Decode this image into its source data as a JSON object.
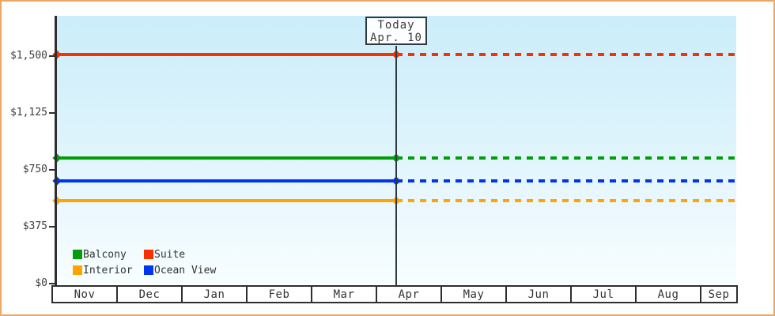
{
  "chart": {
    "name": "cabin-price-history-and-forecast-chart"
  },
  "colors": {
    "frame_border": "#eca767",
    "plot_bg_top": "#cbedfa",
    "plot_bg_bottom": "#f7feff",
    "axis_ink": "#2e2e2e",
    "text_ink": "#3a3a3a",
    "today_box_bg": "#fdfeff"
  },
  "chart_data": {
    "type": "line",
    "title": "",
    "x": {
      "categories": [
        "Nov",
        "Dec",
        "Jan",
        "Feb",
        "Mar",
        "Apr",
        "May",
        "Jun",
        "Jul",
        "Aug",
        "Sep"
      ]
    },
    "y": {
      "range": [
        0,
        1500
      ],
      "ticks": [
        1500,
        1125,
        750,
        375,
        0
      ],
      "tick_labels": [
        "$1,500",
        "$1,125",
        "$750",
        "$375",
        "$0"
      ],
      "unit": "$"
    },
    "today": {
      "month": "Apr",
      "day": 10,
      "labels": [
        "Today",
        "Apr. 10"
      ]
    },
    "series": [
      {
        "name": "Balcony",
        "color": "#009f0a",
        "value": 820,
        "style": "solid before today, dashed after",
        "markers": [
          "start",
          "today"
        ]
      },
      {
        "name": "Suite",
        "color": "#fa3000",
        "value": 1500,
        "style": "solid before today, dashed after",
        "markers": [
          "start",
          "today"
        ]
      },
      {
        "name": "Interior",
        "color": "#ffa400",
        "value": 535,
        "style": "solid before today, dashed after",
        "markers": [
          "start",
          "today"
        ]
      },
      {
        "name": "Ocean View",
        "color": "#0134ee",
        "value": 665,
        "style": "solid before today, dashed after",
        "markers": [
          "start",
          "today"
        ]
      }
    ],
    "legend": {
      "position": "bottom-left",
      "columns": 2,
      "entries": [
        "Balcony",
        "Suite",
        "Interior",
        "Ocean View"
      ]
    },
    "grid": false
  }
}
